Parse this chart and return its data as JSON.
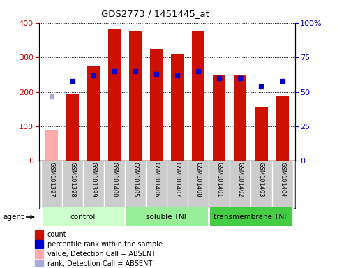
{
  "title": "GDS2773 / 1451445_at",
  "samples": [
    "GSM101397",
    "GSM101398",
    "GSM101399",
    "GSM101400",
    "GSM101405",
    "GSM101406",
    "GSM101407",
    "GSM101408",
    "GSM101401",
    "GSM101402",
    "GSM101403",
    "GSM101404"
  ],
  "count_values": [
    90,
    193,
    275,
    383,
    378,
    325,
    310,
    378,
    248,
    248,
    157,
    187
  ],
  "percentile_values": [
    null,
    58,
    62,
    65,
    65,
    63,
    62,
    65,
    60,
    60,
    54,
    58
  ],
  "absent_indices": [
    0
  ],
  "absent_rank_value": 186,
  "groups": [
    {
      "label": "control",
      "start": 0,
      "end": 4,
      "color": "#ccffcc"
    },
    {
      "label": "soluble TNF",
      "start": 4,
      "end": 8,
      "color": "#99ee99"
    },
    {
      "label": "transmembrane TNF",
      "start": 8,
      "end": 12,
      "color": "#44cc44"
    }
  ],
  "ylim_left": [
    0,
    400
  ],
  "ylim_right": [
    0,
    100
  ],
  "yticks_left": [
    0,
    100,
    200,
    300,
    400
  ],
  "yticks_right": [
    0,
    25,
    50,
    75,
    100
  ],
  "yticklabels_right": [
    "0",
    "25",
    "50",
    "75",
    "100%"
  ],
  "bar_color_normal": "#cc1100",
  "bar_color_absent": "#ffaaaa",
  "dot_color_normal": "#0000cc",
  "dot_color_absent": "#aaaadd",
  "background_color": "#ffffff",
  "plot_bg_color": "#ffffff",
  "axis_label_color_left": "#cc0000",
  "axis_label_color_right": "#0000cc",
  "label_bg_color": "#cccccc",
  "agent_label": "agent",
  "legend_items": [
    {
      "label": "count",
      "color": "#cc1100"
    },
    {
      "label": "percentile rank within the sample",
      "color": "#0000cc"
    },
    {
      "label": "value, Detection Call = ABSENT",
      "color": "#ffaaaa"
    },
    {
      "label": "rank, Detection Call = ABSENT",
      "color": "#aaaadd"
    }
  ]
}
